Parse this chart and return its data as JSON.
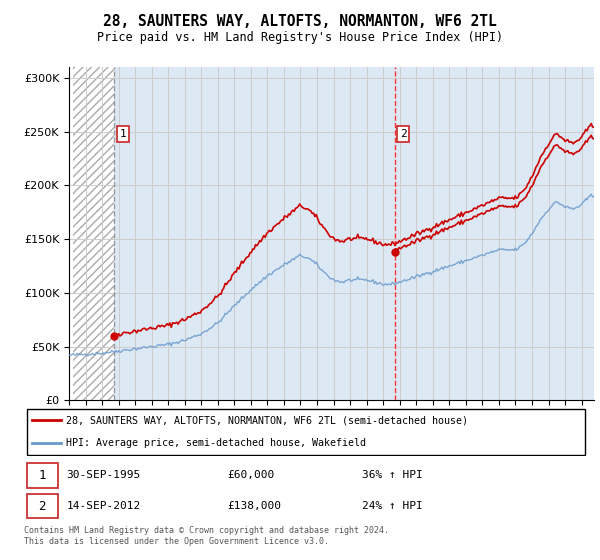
{
  "title": "28, SAUNTERS WAY, ALTOFTS, NORMANTON, WF6 2TL",
  "subtitle": "Price paid vs. HM Land Registry's House Price Index (HPI)",
  "ylim": [
    0,
    310000
  ],
  "xlim_start": 1993.25,
  "xlim_end": 2024.75,
  "sale1_year": 1995.75,
  "sale1_price": 60000,
  "sale1_label": "1",
  "sale1_date": "30-SEP-1995",
  "sale1_amount": "£60,000",
  "sale1_hpi": "36% ↑ HPI",
  "sale2_year": 2012.7,
  "sale2_price": 138000,
  "sale2_label": "2",
  "sale2_date": "14-SEP-2012",
  "sale2_amount": "£138,000",
  "sale2_hpi": "24% ↑ HPI",
  "legend_line1": "28, SAUNTERS WAY, ALTOFTS, NORMANTON, WF6 2TL (semi-detached house)",
  "legend_line2": "HPI: Average price, semi-detached house, Wakefield",
  "footer": "Contains HM Land Registry data © Crown copyright and database right 2024.\nThis data is licensed under the Open Government Licence v3.0.",
  "grid_color": "#cccccc",
  "sale1_line_color": "#999999",
  "sale2_line_color": "#ff3333",
  "property_line_color": "#cc0000",
  "hpi_line_color": "#6699cc",
  "bg_blue": "#dde8f5",
  "marker_color": "#cc0000",
  "label_box_color": "#cc3333"
}
